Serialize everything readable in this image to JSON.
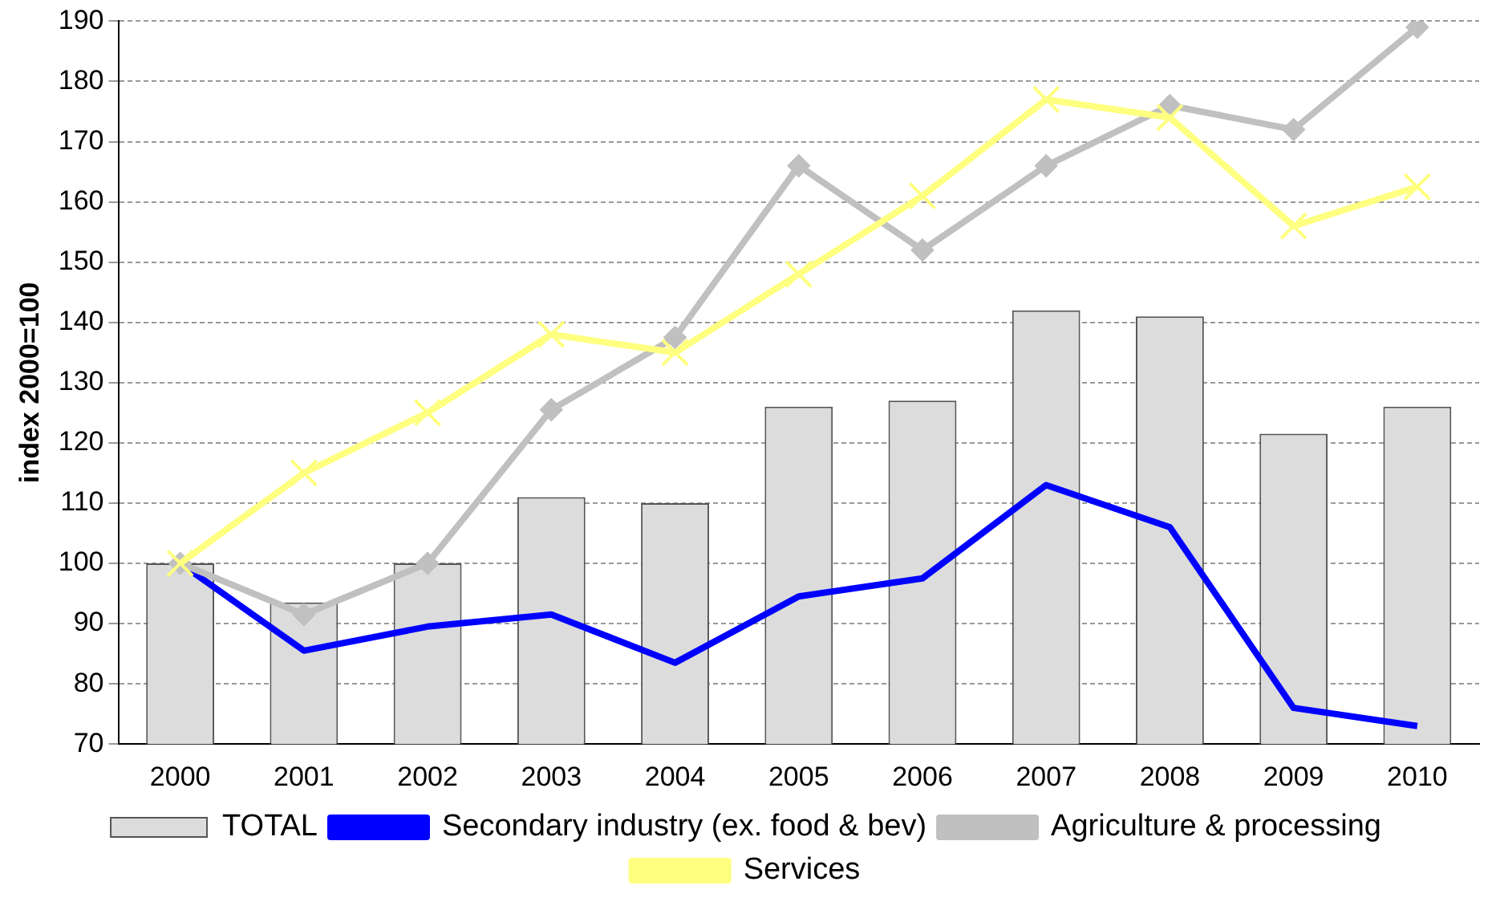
{
  "chart_data": {
    "type": "bar",
    "ylabel": "index 2000=100",
    "categories": [
      "2000",
      "2001",
      "2002",
      "2003",
      "2004",
      "2005",
      "2006",
      "2007",
      "2008",
      "2009",
      "2010"
    ],
    "series": [
      {
        "name": "TOTAL",
        "color": "#dcdcdc",
        "values": [
          100,
          93.5,
          100,
          111,
          110,
          126,
          127,
          142,
          141,
          121.5,
          126
        ]
      },
      {
        "name": "Secondary industry (ex. food & bev)",
        "type": "line",
        "color": "#0000ff",
        "marker": "none",
        "values": [
          100,
          85.5,
          89.5,
          91.5,
          83.5,
          94.5,
          97.5,
          113,
          106,
          76,
          73
        ]
      },
      {
        "name": "Agriculture & processing",
        "type": "line",
        "color": "#c0c0c0",
        "marker": "diamond",
        "values": [
          100,
          91.5,
          100,
          125.5,
          137.5,
          166,
          152,
          166,
          176,
          172,
          189
        ]
      },
      {
        "name": "Services",
        "type": "line",
        "color": "#ffff80",
        "marker": "cross",
        "values": [
          100,
          115,
          125,
          138,
          135,
          148,
          161,
          177,
          174,
          156,
          162.5
        ]
      }
    ],
    "ylim": [
      70,
      190
    ],
    "yticks": [
      70,
      80,
      90,
      100,
      110,
      120,
      130,
      140,
      150,
      160,
      170,
      180,
      190
    ],
    "grid": "y",
    "legend": "bottom"
  }
}
